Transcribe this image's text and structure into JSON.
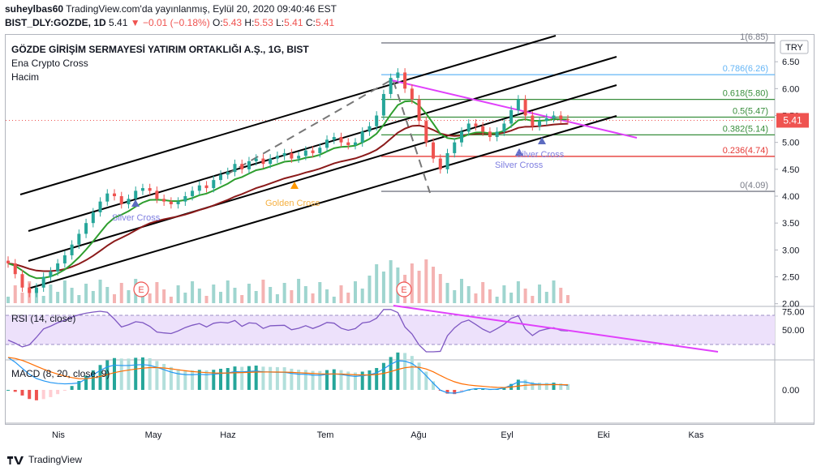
{
  "header": {
    "line1_user": "suheylbas60",
    "line1_rest": "TradingView.com'da yayınlanmış, Eylül 20, 2020 09:40:46 EST",
    "symbol": "BIST_DLY:GOZDE, 1D",
    "last": "5.41",
    "change": "−0.01 (−0.18%)",
    "o_label": "O:",
    "o_val": "5.43",
    "h_label": "H:",
    "h_val": "5.53",
    "l_label": "L:",
    "l_val": "5.41",
    "c_label": "C:",
    "c_val": "5.41"
  },
  "legend": {
    "title": "GÖZDE GİRİŞİM SERMAYESİ YATIRIM ORTAKLIĞI A.Ş., 1G, BIST",
    "indicator1": "Ena Crypto Cross",
    "indicator2": "Hacim",
    "rsi": "RSI (14, close)",
    "macd": "MACD (8, 20, close, 9)"
  },
  "currency": "TRY",
  "price_badge": "5.41",
  "brand": "TradingView",
  "colors": {
    "up": "#26a69a",
    "down": "#ef5350",
    "fib_gray": "#787b86",
    "fib_blue": "#64b5f6",
    "fib_green": "#388e3c",
    "fib_red": "#e53935",
    "trend_magenta": "#e040fb",
    "ema_green": "#2e9e2e",
    "ema_dark": "#8b1a1a",
    "rsi_line": "#7e57c2",
    "macd_line": "#2196f3",
    "signal_line": "#ff6d00"
  },
  "chart_data": [
    {
      "type": "candlestick",
      "title": "GÖZDE GİRİŞİM SERMAYESİ YATIRIM ORTAKLIĞI A.Ş., 1G, BIST",
      "x_ticks": [
        "Nis",
        "May",
        "Haz",
        "Tem",
        "Ağu",
        "Eyl",
        "Eki",
        "Kas"
      ],
      "y_ticks": [
        2.0,
        2.5,
        3.0,
        3.5,
        4.0,
        4.5,
        5.0,
        5.5,
        6.0,
        6.5
      ],
      "ylim": [
        1.95,
        7.0
      ],
      "last_price": 5.41,
      "fibonacci": [
        {
          "label": "1(6.85)",
          "level": 6.85
        },
        {
          "label": "0.786(6.26)",
          "level": 6.26
        },
        {
          "label": "0.618(5.80)",
          "level": 5.8
        },
        {
          "label": "0.5(5.47)",
          "level": 5.47
        },
        {
          "label": "0.382(5.14)",
          "level": 5.14
        },
        {
          "label": "0.236(4.74)",
          "level": 4.74
        },
        {
          "label": "0(4.09)",
          "level": 4.09
        }
      ],
      "annotations": [
        "Silver Cross",
        "Golden Cross",
        "Silver Cross",
        "Silver Cross"
      ],
      "series_close_approx": [
        2.75,
        2.55,
        2.3,
        2.2,
        2.3,
        2.5,
        2.6,
        2.75,
        2.9,
        3.1,
        3.3,
        3.5,
        3.7,
        3.9,
        4.05,
        4.0,
        3.85,
        3.95,
        4.1,
        4.15,
        4.1,
        3.95,
        3.9,
        3.85,
        3.9,
        4.0,
        4.1,
        4.2,
        4.15,
        4.3,
        4.4,
        4.45,
        4.6,
        4.5,
        4.65,
        4.7,
        4.6,
        4.7,
        4.75,
        4.8,
        4.7,
        4.75,
        4.85,
        4.8,
        4.9,
        5.05,
        5.1,
        5.0,
        4.95,
        5.0,
        5.2,
        5.3,
        5.5,
        5.9,
        6.2,
        6.3,
        6.0,
        5.8,
        5.4,
        5.0,
        4.7,
        4.5,
        4.8,
        5.0,
        5.2,
        5.35,
        5.3,
        5.2,
        5.1,
        5.2,
        5.35,
        5.6,
        5.8,
        5.5,
        5.3,
        5.4,
        5.45,
        5.5,
        5.43,
        5.41
      ]
    },
    {
      "type": "line",
      "title": "RSI (14, close)",
      "y_ticks": [
        50.0,
        75.0
      ],
      "ylim": [
        10,
        80
      ],
      "band": [
        30,
        70
      ]
    },
    {
      "type": "bar",
      "title": "MACD (8, 20, close, 9)",
      "y_ticks": [
        0.0
      ]
    }
  ]
}
